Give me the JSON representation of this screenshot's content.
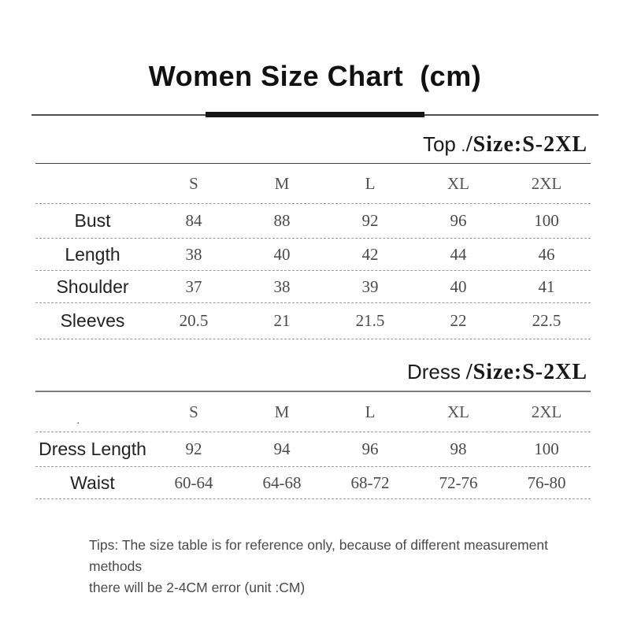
{
  "title": "Women Size Chart  (cm)",
  "sections": [
    {
      "name_label": "Top",
      "dot": ".",
      "size_label": "/Size:S-2XL",
      "columns": [
        "S",
        "M",
        "L",
        "XL",
        "2XL"
      ],
      "rows": [
        {
          "label": "Bust",
          "values": [
            "84",
            "88",
            "92",
            "96",
            "100"
          ]
        },
        {
          "label": "Length",
          "values": [
            "38",
            "40",
            "42",
            "44",
            "46"
          ]
        },
        {
          "label": "Shoulder",
          "values": [
            "37",
            "38",
            "39",
            "40",
            "41"
          ]
        },
        {
          "label": "Sleeves",
          "values": [
            "20.5",
            "21",
            "21.5",
            "22",
            "22.5"
          ]
        }
      ]
    },
    {
      "name_label": "Dress",
      "size_label": "/Size:S-2XL",
      "header_dot": ".",
      "columns": [
        "S",
        "M",
        "L",
        "XL",
        "2XL"
      ],
      "rows": [
        {
          "label": "Dress Length",
          "values": [
            "92",
            "94",
            "96",
            "98",
            "100"
          ]
        },
        {
          "label": "Waist",
          "values": [
            "60-64",
            "64-68",
            "68-72",
            "72-76",
            "76-80"
          ]
        }
      ]
    }
  ],
  "tips": {
    "line1": "Tips: The size table is for reference only, because of different measurement methods",
    "line2": "there will be 2-4CM error (unit :CM)"
  },
  "colors": {
    "title_ink": "#111111",
    "label_ink": "#222222",
    "value_ink": "#4a4a4a",
    "top_rule": "#3e3e3e",
    "dress_rule": "#7e7e7e",
    "dashed_rule": "#999999",
    "divider_bar": "#161616"
  }
}
